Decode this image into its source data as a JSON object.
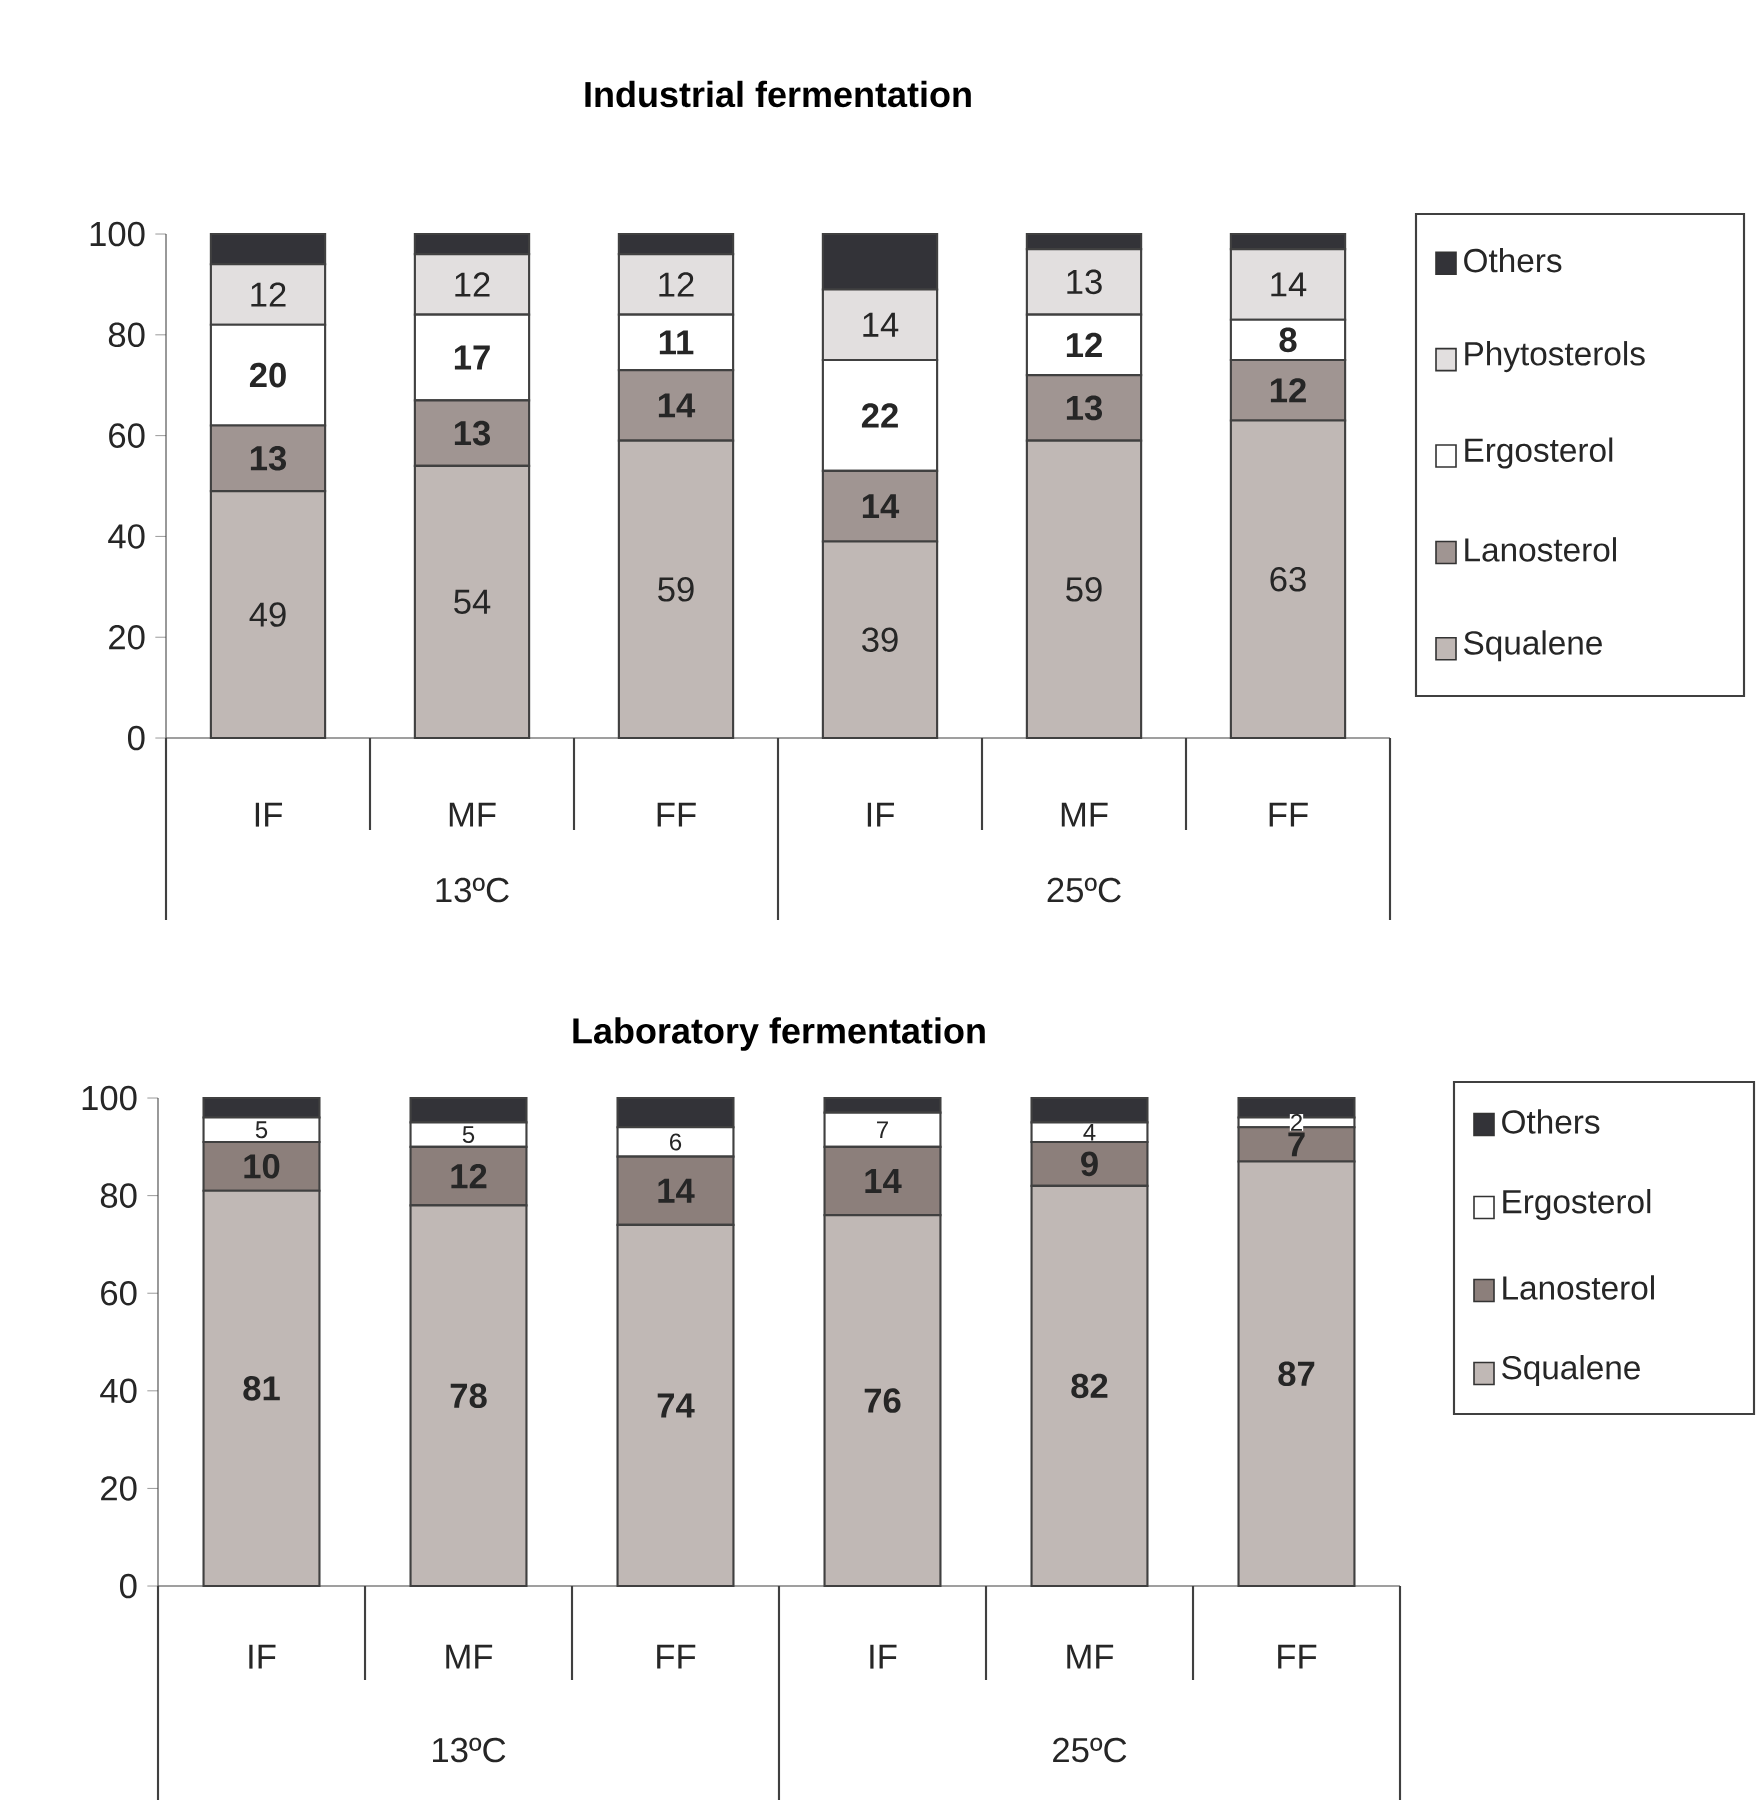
{
  "chart_data": [
    {
      "type": "bar",
      "title": "Industrial fermentation",
      "stacked": true,
      "categories": [
        "IF",
        "MF",
        "FF",
        "IF",
        "MF",
        "FF"
      ],
      "ylim": [
        0,
        100
      ],
      "yticks": [
        0,
        20,
        40,
        60,
        80,
        100
      ],
      "legend": "right",
      "annotations": [
        "13ºC",
        "25ºC"
      ],
      "series": [
        {
          "name": "Squalene",
          "color": "#c0b8b5",
          "values": [
            49,
            54,
            59,
            39,
            59,
            63
          ],
          "value_labels": [
            "49",
            "54",
            "59",
            "39",
            "59",
            "63"
          ]
        },
        {
          "name": "Lanosterol",
          "color": "#a09592",
          "values": [
            13,
            13,
            14,
            14,
            13,
            12
          ],
          "value_labels": [
            "13",
            "13",
            "14",
            "14",
            "13",
            "12"
          ]
        },
        {
          "name": "Ergosterol",
          "color": "#ffffff",
          "values": [
            20,
            17,
            11,
            22,
            12,
            8
          ],
          "value_labels": [
            "20",
            "17",
            "11",
            "22",
            "12",
            "8"
          ]
        },
        {
          "name": "Phytosterols",
          "color": "#e2dfdf",
          "values": [
            12,
            12,
            12,
            14,
            13,
            14
          ],
          "value_labels": [
            "12",
            "12",
            "12",
            "14",
            "13",
            "14"
          ]
        },
        {
          "name": "Others",
          "color": "#333338",
          "values": [
            6,
            4,
            4,
            11,
            3,
            3
          ],
          "value_labels": [
            null,
            null,
            null,
            null,
            null,
            null
          ]
        }
      ]
    },
    {
      "type": "bar",
      "title": "Laboratory fermentation",
      "stacked": true,
      "categories": [
        "IF",
        "MF",
        "FF",
        "IF",
        "MF",
        "FF"
      ],
      "ylim": [
        0,
        100
      ],
      "yticks": [
        0,
        20,
        40,
        60,
        80,
        100
      ],
      "legend": "right",
      "annotations": [
        "13ºC",
        "25ºC"
      ],
      "series": [
        {
          "name": "Squalene",
          "color": "#c0b8b5",
          "values": [
            81,
            78,
            74,
            76,
            82,
            87
          ],
          "value_labels": [
            "81",
            "78",
            "74",
            "76",
            "82",
            "87"
          ]
        },
        {
          "name": "Lanosterol",
          "color": "#8c7f7b",
          "values": [
            10,
            12,
            14,
            14,
            9,
            7
          ],
          "value_labels": [
            "10",
            "12",
            "14",
            "14",
            "9",
            "7"
          ]
        },
        {
          "name": "Ergosterol",
          "color": "#ffffff",
          "values": [
            5,
            5,
            6,
            7,
            4,
            2
          ],
          "value_labels": [
            "5",
            "5",
            "6",
            "7",
            "4",
            "2"
          ]
        },
        {
          "name": "Others",
          "color": "#333338",
          "values": [
            4,
            5,
            6,
            3,
            5,
            4
          ],
          "value_labels": [
            null,
            null,
            null,
            null,
            null,
            null
          ]
        }
      ]
    }
  ]
}
